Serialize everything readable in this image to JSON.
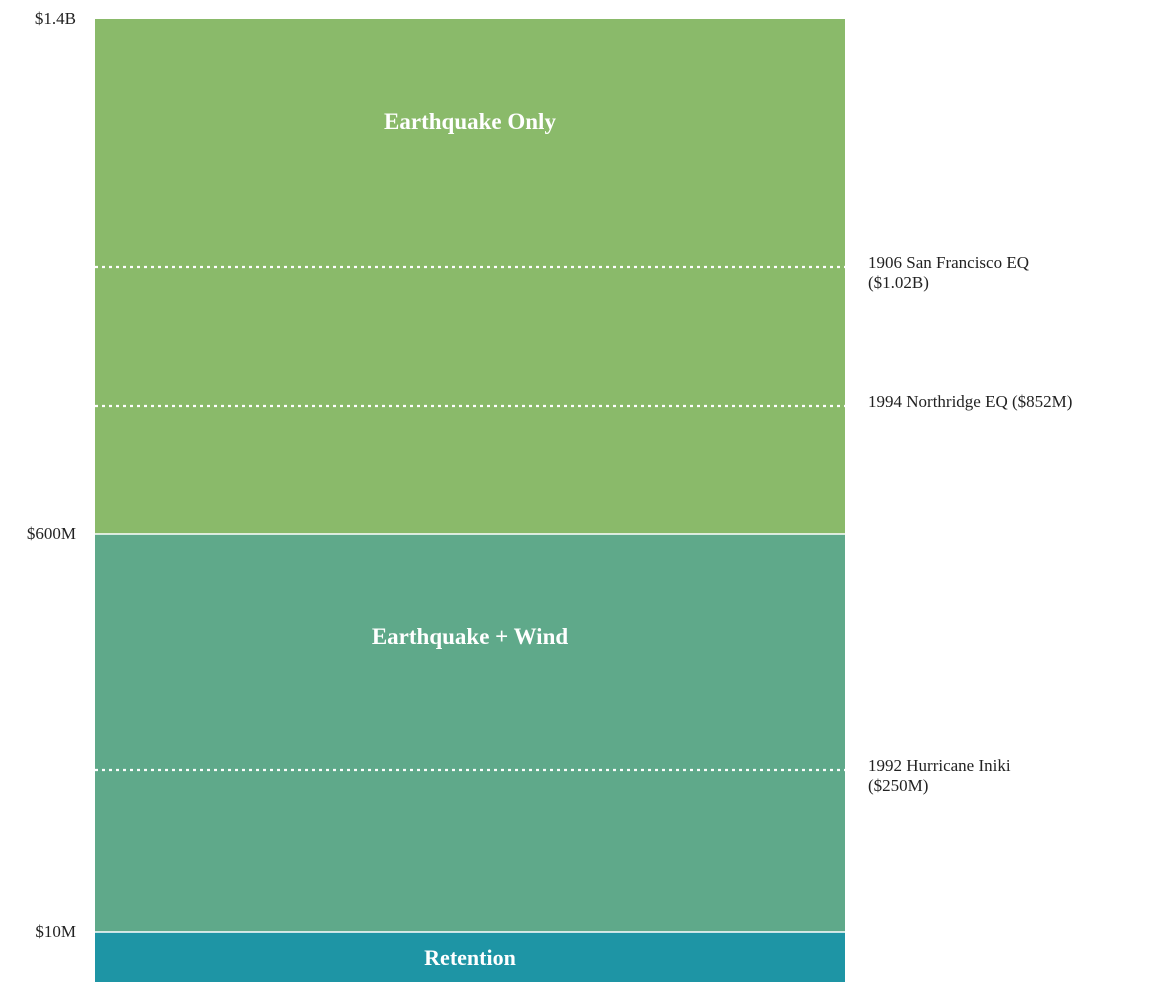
{
  "chart_data": {
    "type": "tower",
    "title": "",
    "axis": {
      "tick_labels": [
        {
          "text": "$1.4B",
          "value": 1400
        },
        {
          "text": "$600M",
          "value": 600
        },
        {
          "text": "$10M",
          "value": 10
        }
      ]
    },
    "layers": [
      {
        "label": "Earthquake Only",
        "from": 600,
        "to": 1400,
        "color": "#8aba6a"
      },
      {
        "label": "Earthquake + Wind",
        "from": 10,
        "to": 600,
        "color": "#5fa98a"
      },
      {
        "label": "Retention",
        "from": 0,
        "to": 10,
        "color": "#1e95a5"
      }
    ],
    "events": [
      {
        "lines": [
          "1906 San Francisco EQ",
          "($1.02B)"
        ],
        "value": 1020
      },
      {
        "lines": [
          "1994 Northridge EQ ($852M)"
        ],
        "value": 852
      },
      {
        "lines": [
          "1992 Hurricane Iniki",
          "($250M)"
        ],
        "value": 250
      }
    ]
  }
}
